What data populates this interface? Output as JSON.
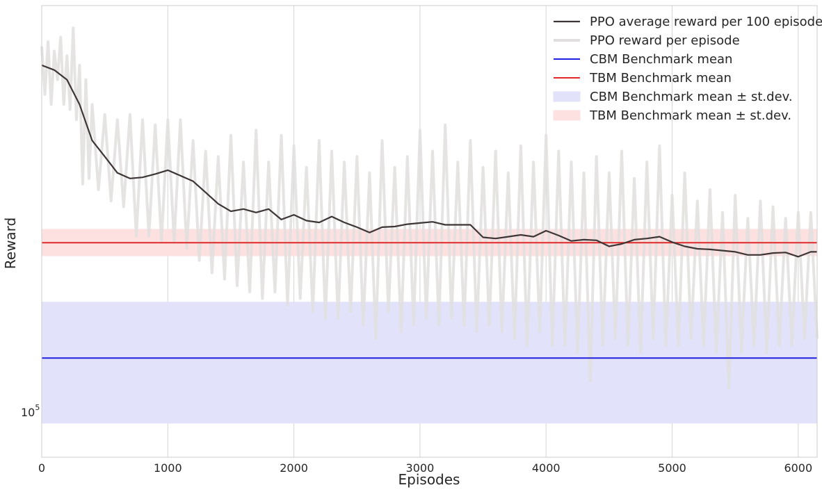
{
  "chart_data": {
    "type": "line",
    "title": "",
    "xlabel": "Episodes",
    "ylabel": "Reward",
    "y_scale": "log",
    "xlim": [
      0,
      6150
    ],
    "ylim": [
      94000,
      171000
    ],
    "grid": true,
    "legend_position": "top-right",
    "x_ticks": [
      0,
      1000,
      2000,
      3000,
      4000,
      5000,
      6000
    ],
    "y_tick_labels": [
      {
        "value": 100000,
        "base": "10",
        "exponent": "5"
      }
    ],
    "colors": {
      "avg": "#3d3535",
      "raw": "#e0dfde",
      "cbm": "#1f1fe0",
      "tbm": "#e02a2a",
      "cbm_band": "#e2e2fb",
      "tbm_band": "#fde0e0"
    },
    "series": [
      {
        "name": "PPO average reward per 100 episodes",
        "x": [
          0,
          100,
          200,
          300,
          400,
          500,
          600,
          700,
          800,
          900,
          1000,
          1100,
          1200,
          1300,
          1400,
          1500,
          1600,
          1700,
          1800,
          1900,
          2000,
          2100,
          2200,
          2300,
          2400,
          2500,
          2600,
          2700,
          2800,
          2900,
          3000,
          3100,
          3200,
          3300,
          3400,
          3500,
          3600,
          3700,
          3800,
          3900,
          4000,
          4100,
          4200,
          4300,
          4400,
          4500,
          4600,
          4700,
          4800,
          4900,
          5000,
          5100,
          5200,
          5300,
          5400,
          5500,
          5600,
          5700,
          5800,
          5900,
          6000,
          6100,
          6150
        ],
        "y": [
          158000,
          157000,
          155000,
          150000,
          143000,
          140000,
          137000,
          136000,
          136200,
          136800,
          137500,
          136500,
          135500,
          133500,
          131500,
          130200,
          130600,
          130000,
          130600,
          128800,
          129600,
          128600,
          128300,
          129300,
          128300,
          127500,
          126600,
          127500,
          127600,
          128000,
          128200,
          128400,
          127900,
          127900,
          127900,
          125800,
          125600,
          125900,
          126200,
          125900,
          126900,
          126100,
          125200,
          125400,
          125300,
          124300,
          124700,
          125400,
          125600,
          125900,
          125000,
          124300,
          123900,
          123800,
          123600,
          123400,
          122900,
          122900,
          123200,
          123300,
          122600,
          123400,
          123400
        ]
      },
      {
        "name": "PPO reward per episode",
        "x": [
          0,
          25,
          50,
          75,
          100,
          125,
          150,
          175,
          200,
          225,
          250,
          275,
          300,
          325,
          350,
          375,
          400,
          450,
          500,
          550,
          600,
          650,
          700,
          750,
          800,
          850,
          900,
          950,
          1000,
          1050,
          1100,
          1150,
          1200,
          1250,
          1300,
          1350,
          1400,
          1450,
          1500,
          1550,
          1600,
          1650,
          1700,
          1750,
          1800,
          1850,
          1900,
          1950,
          2000,
          2050,
          2100,
          2150,
          2200,
          2250,
          2300,
          2350,
          2400,
          2450,
          2500,
          2550,
          2600,
          2650,
          2700,
          2750,
          2800,
          2850,
          2900,
          2950,
          3000,
          3050,
          3100,
          3150,
          3200,
          3250,
          3300,
          3350,
          3400,
          3450,
          3500,
          3550,
          3600,
          3650,
          3700,
          3750,
          3800,
          3850,
          3900,
          3950,
          4000,
          4050,
          4100,
          4150,
          4200,
          4250,
          4300,
          4350,
          4400,
          4450,
          4500,
          4550,
          4600,
          4650,
          4700,
          4750,
          4800,
          4850,
          4900,
          4950,
          5000,
          5050,
          5100,
          5150,
          5200,
          5250,
          5300,
          5350,
          5400,
          5450,
          5500,
          5550,
          5600,
          5650,
          5700,
          5750,
          5800,
          5850,
          5900,
          5950,
          6000,
          6050,
          6100,
          6150
        ],
        "y": [
          162000,
          152000,
          163000,
          150000,
          161000,
          155000,
          164000,
          150000,
          160000,
          149000,
          166000,
          147000,
          158000,
          135000,
          155000,
          136000,
          150000,
          134000,
          148000,
          132000,
          147000,
          131000,
          148000,
          126000,
          147000,
          126000,
          146000,
          125000,
          147000,
          125000,
          147000,
          124000,
          143000,
          122000,
          141000,
          120000,
          140000,
          119000,
          144000,
          118000,
          139000,
          117000,
          145000,
          116000,
          139000,
          117000,
          144000,
          115000,
          142000,
          116000,
          138000,
          114000,
          143000,
          113000,
          141000,
          113000,
          139000,
          114000,
          140000,
          112000,
          137000,
          110000,
          143000,
          114000,
          138000,
          111000,
          140000,
          112000,
          145000,
          113000,
          141000,
          112000,
          146000,
          113000,
          139000,
          112000,
          143000,
          111000,
          138000,
          112000,
          141000,
          111000,
          137000,
          110000,
          142000,
          109000,
          139000,
          111000,
          144000,
          109000,
          141000,
          109000,
          139000,
          108000,
          137000,
          104000,
          140000,
          109000,
          137000,
          110000,
          141000,
          109000,
          136000,
          108000,
          139000,
          110000,
          142000,
          109000,
          133000,
          109000,
          137000,
          110000,
          132000,
          109000,
          134000,
          108000,
          130000,
          103000,
          133000,
          108000,
          129000,
          109000,
          132000,
          108000,
          131000,
          109000,
          129000,
          109000,
          130000,
          110000,
          130000,
          110000
        ]
      },
      {
        "name": "CBM Benchmark mean",
        "value": 107200
      },
      {
        "name": "TBM Benchmark mean",
        "value": 124900
      },
      {
        "name": "CBM Benchmark mean ± st.dev.",
        "lower": 98300,
        "upper": 115500
      },
      {
        "name": "TBM Benchmark mean ± st.dev.",
        "lower": 122700,
        "upper": 127200
      }
    ]
  }
}
